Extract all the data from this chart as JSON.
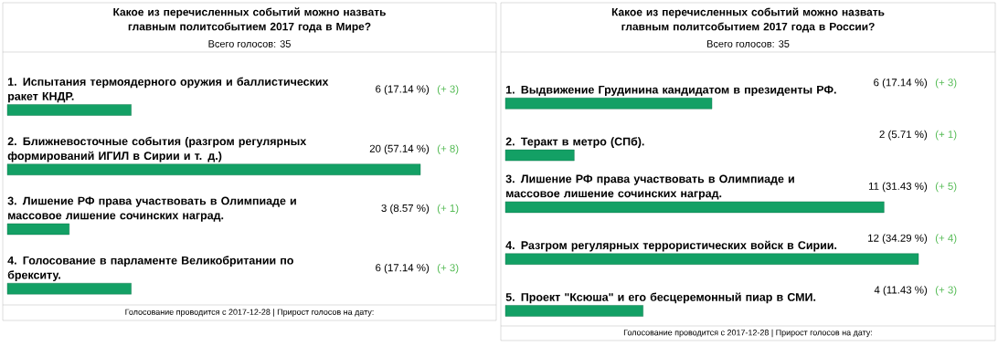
{
  "chart_data": [
    {
      "type": "bar",
      "orientation": "horizontal",
      "title": "Какое из перечисленных событий можно назвать главным политсобытием 2017 года в Мире?",
      "subtitle": "Всего голосов: 35",
      "categories": [
        "1. Испытания термоядерного оружия и баллистических ракет КНДР.",
        "2. Ближневосточные события (разгром регулярных формирований ИГИЛ в Сирии и т. д.)",
        "3. Лишение РФ права участвовать в Олимпиаде и массовое лишение сочинских наград.",
        "4. Голосование в парламенте Великобритании по брекситу."
      ],
      "values": [
        6,
        20,
        3,
        6
      ],
      "value_labels": [
        "6 (17.14 %)",
        "20 (57.14 %)",
        "3 (8.57 %)",
        "6 (17.14 %)"
      ],
      "color": "#13a065",
      "annotations": [
        "(+ 3)",
        "(+ 8)",
        "(+ 1)",
        "(+ 3)",
        "Голосование проводится с 2017-12-28   |   Прирост голосов на дату:"
      ]
    },
    {
      "type": "bar",
      "orientation": "horizontal",
      "title": "Какое из перечисленных событий можно назвать главным политсобытием 2017 года в России?",
      "subtitle": "Всего голосов: 35",
      "categories": [
        "1. Выдвижение Грудинина кандидатом в президенты РФ.",
        "2. Теракт в метро (СПб).",
        "3. Лишение РФ права участвовать в Олимпиаде и массовое лишение сочинских наград.",
        "4. Разгром регулярных террористических войск в Сирии.",
        "5. Проект \"Ксюша\" и его бесцеремонный пиар в СМИ."
      ],
      "values": [
        6,
        2,
        11,
        12,
        4
      ],
      "value_labels": [
        "6 (17.14 %)",
        "2 (5.71 %)",
        "11 (31.43 %)",
        "12 (34.29 %)",
        "4 (11.43 %)"
      ],
      "color": "#13a065",
      "annotations": [
        "(+ 3)",
        "(+ 1)",
        "(+ 5)",
        "(+ 4)",
        "(+ 3)",
        "Голосование проводится с 2017-12-28   |   Прирост голосов на дату:"
      ]
    }
  ]
}
